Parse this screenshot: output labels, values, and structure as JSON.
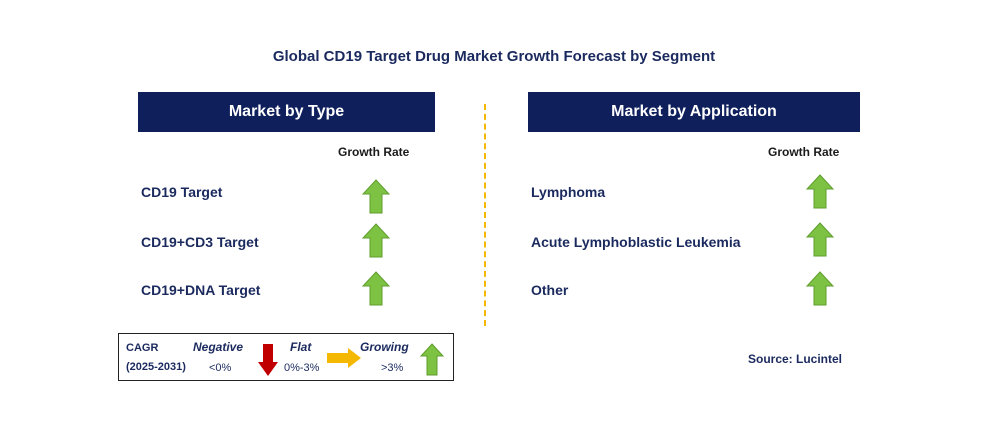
{
  "title": "Global CD19 Target Drug Market Growth Forecast by Segment",
  "left_panel": {
    "header": "Market by Type",
    "growth_rate_label": "Growth Rate",
    "rows": [
      {
        "label": "CD19 Target",
        "trend": "growing"
      },
      {
        "label": "CD19+CD3 Target",
        "trend": "growing"
      },
      {
        "label": "CD19+DNA Target",
        "trend": "growing"
      }
    ]
  },
  "right_panel": {
    "header": "Market by Application",
    "growth_rate_label": "Growth Rate",
    "rows": [
      {
        "label": "Lymphoma",
        "trend": "growing"
      },
      {
        "label": "Acute Lymphoblastic Leukemia",
        "trend": "growing"
      },
      {
        "label": "Other",
        "trend": "growing"
      }
    ]
  },
  "legend": {
    "cagr_label": "CAGR",
    "period": "(2025-2031)",
    "negative": {
      "label": "Negative",
      "range": "<0%"
    },
    "flat": {
      "label": "Flat",
      "range": "0%-3%"
    },
    "growing": {
      "label": "Growing",
      "range": ">3%"
    }
  },
  "source": "Source: Lucintel",
  "colors": {
    "header_bg": "#0f1f5c",
    "growing_arrow": "#7dc242",
    "negative_arrow": "#c00000",
    "flat_arrow": "#f5b800",
    "divider": "#f5b800"
  }
}
